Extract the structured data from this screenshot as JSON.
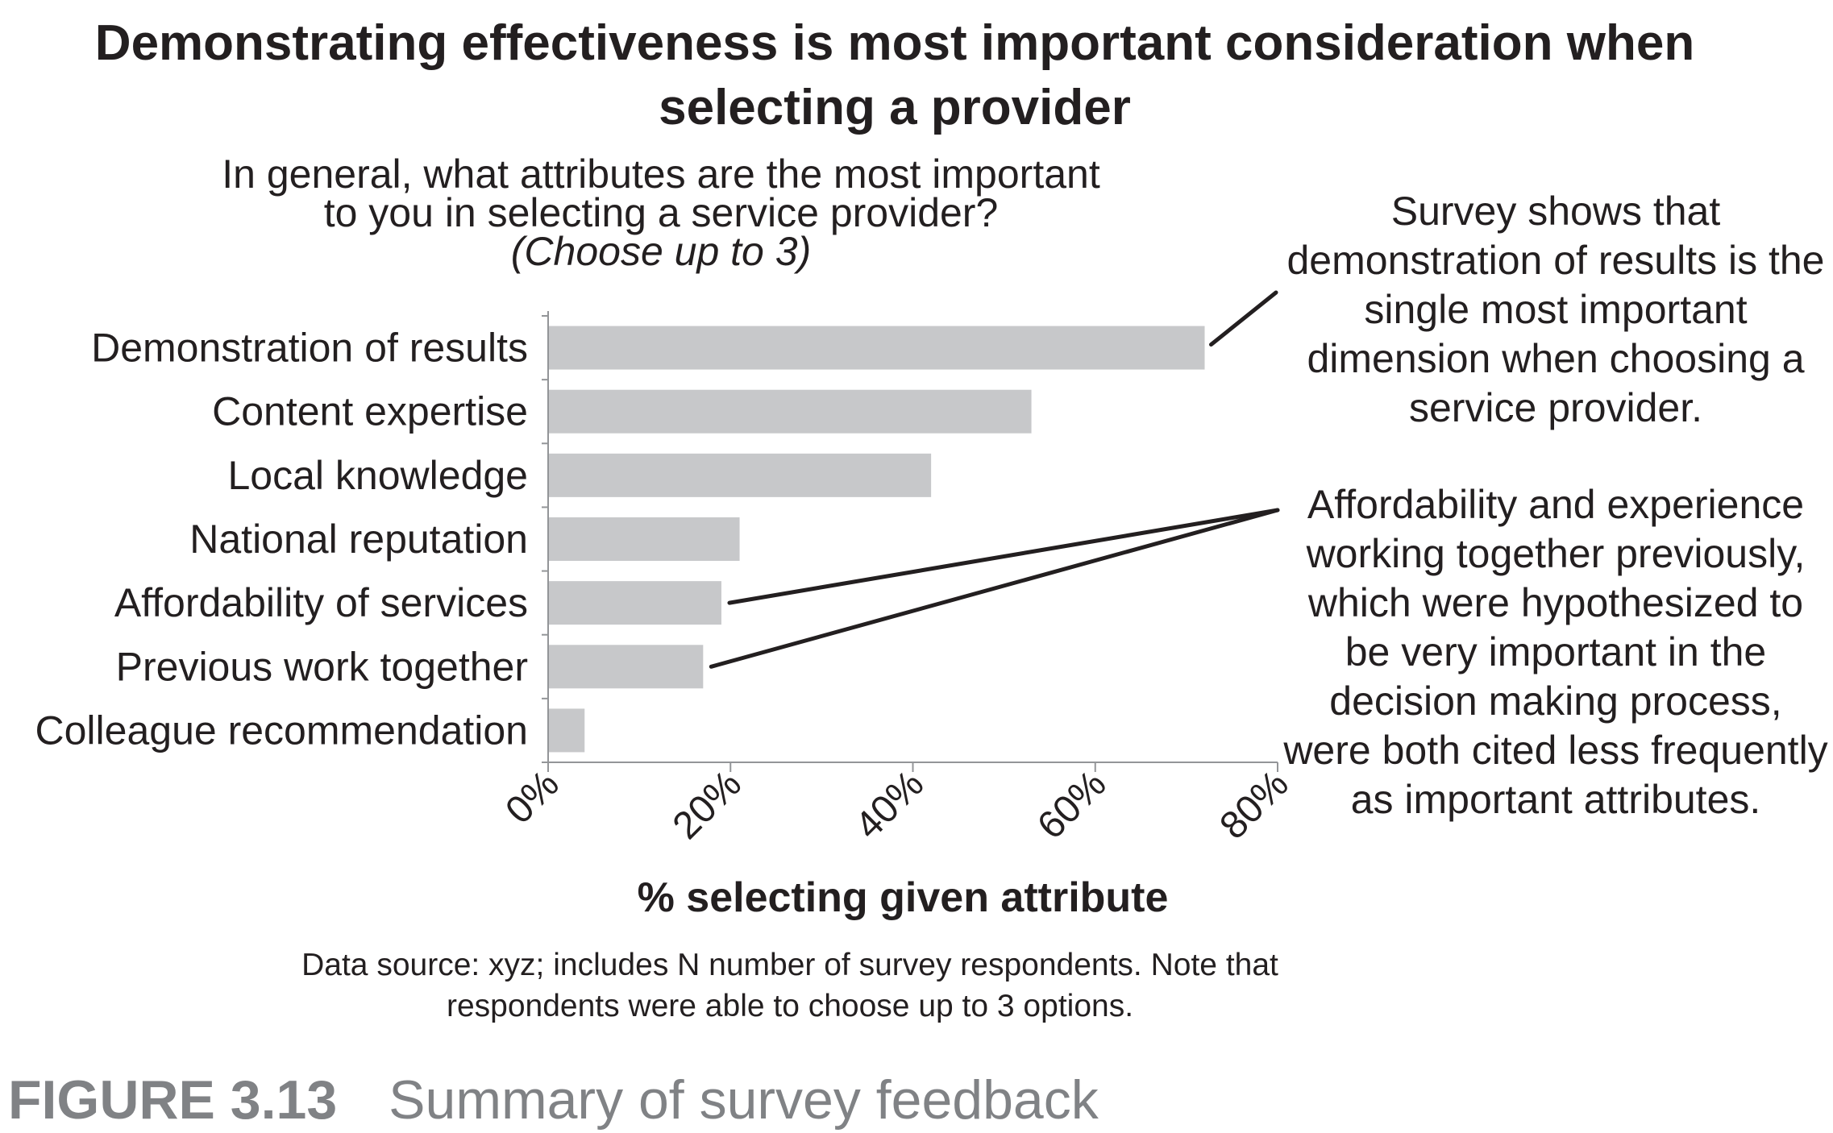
{
  "title": "Demonstrating effectiveness is most important consideration when selecting a provider",
  "question": {
    "line1": "In general, what attributes are the most important",
    "line2": "to you in selecting a service provider?",
    "line3": "(Choose up to 3)"
  },
  "annotations": {
    "top": "Survey shows that demonstration of results is the single most important dimension when choosing a service provider.",
    "bottom": "Affordability and experience working together previously, which were hypothesized to be very important in the decision making process, were both cited less frequently as important attributes."
  },
  "source_note": {
    "line1": "Data source: xyz; includes N number of survey respondents. Note that",
    "line2": "respondents were able to choose up to 3 options."
  },
  "figure": {
    "number": "FIGURE 3.13",
    "caption": "Summary of survey feedback"
  },
  "colors": {
    "bar": "#c7c8ca",
    "text": "#231f20",
    "axis": "#939598",
    "caption": "#808285"
  },
  "chart_data": {
    "type": "bar",
    "orientation": "horizontal",
    "title": "Demonstrating effectiveness is most important consideration when selecting a provider",
    "xlabel": "% selecting given attribute",
    "ylabel": "",
    "categories": [
      "Demonstration of results",
      "Content expertise",
      "Local knowledge",
      "National reputation",
      "Affordability of services",
      "Previous work together",
      "Colleague recommendation"
    ],
    "values": [
      72,
      53,
      42,
      21,
      19,
      17,
      4
    ],
    "xlim": [
      0,
      80
    ],
    "ticks": [
      0,
      20,
      40,
      60,
      80
    ],
    "tick_labels": [
      "0%",
      "20%",
      "40%",
      "60%",
      "80%"
    ],
    "grid": false,
    "legend": "none"
  }
}
